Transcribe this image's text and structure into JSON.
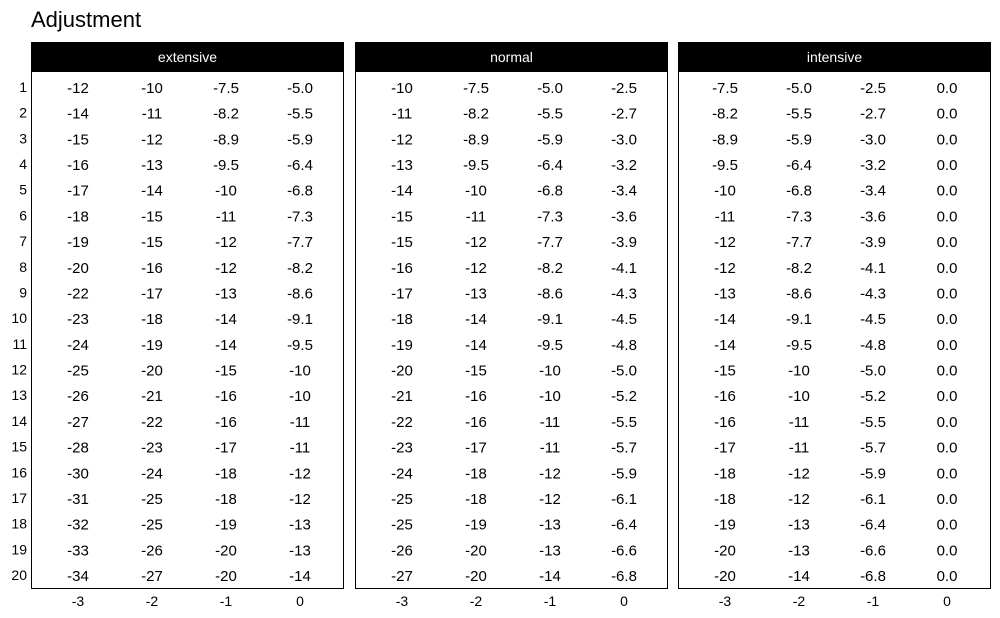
{
  "chart_data": {
    "type": "table",
    "title": "Adjustment",
    "x_tick_labels": [
      "-3",
      "-2",
      "-1",
      "0"
    ],
    "x": [
      -3,
      -2,
      -1,
      0
    ],
    "y_tick_labels": [
      "1",
      "2",
      "3",
      "4",
      "5",
      "6",
      "7",
      "8",
      "9",
      "10",
      "11",
      "12",
      "13",
      "14",
      "15",
      "16",
      "17",
      "18",
      "19",
      "20"
    ],
    "strip_color": "#000000",
    "strip_text_color": "#ffffff",
    "panels": [
      {
        "label": "extensive",
        "rows": [
          [
            "-12",
            "-10",
            "-7.5",
            "-5.0"
          ],
          [
            "-14",
            "-11",
            "-8.2",
            "-5.5"
          ],
          [
            "-15",
            "-12",
            "-8.9",
            "-5.9"
          ],
          [
            "-16",
            "-13",
            "-9.5",
            "-6.4"
          ],
          [
            "-17",
            "-14",
            "-10",
            "-6.8"
          ],
          [
            "-18",
            "-15",
            "-11",
            "-7.3"
          ],
          [
            "-19",
            "-15",
            "-12",
            "-7.7"
          ],
          [
            "-20",
            "-16",
            "-12",
            "-8.2"
          ],
          [
            "-22",
            "-17",
            "-13",
            "-8.6"
          ],
          [
            "-23",
            "-18",
            "-14",
            "-9.1"
          ],
          [
            "-24",
            "-19",
            "-14",
            "-9.5"
          ],
          [
            "-25",
            "-20",
            "-15",
            "-10"
          ],
          [
            "-26",
            "-21",
            "-16",
            "-10"
          ],
          [
            "-27",
            "-22",
            "-16",
            "-11"
          ],
          [
            "-28",
            "-23",
            "-17",
            "-11"
          ],
          [
            "-30",
            "-24",
            "-18",
            "-12"
          ],
          [
            "-31",
            "-25",
            "-18",
            "-12"
          ],
          [
            "-32",
            "-25",
            "-19",
            "-13"
          ],
          [
            "-33",
            "-26",
            "-20",
            "-13"
          ],
          [
            "-34",
            "-27",
            "-20",
            "-14"
          ]
        ]
      },
      {
        "label": "normal",
        "rows": [
          [
            "-10",
            "-7.5",
            "-5.0",
            "-2.5"
          ],
          [
            "-11",
            "-8.2",
            "-5.5",
            "-2.7"
          ],
          [
            "-12",
            "-8.9",
            "-5.9",
            "-3.0"
          ],
          [
            "-13",
            "-9.5",
            "-6.4",
            "-3.2"
          ],
          [
            "-14",
            "-10",
            "-6.8",
            "-3.4"
          ],
          [
            "-15",
            "-11",
            "-7.3",
            "-3.6"
          ],
          [
            "-15",
            "-12",
            "-7.7",
            "-3.9"
          ],
          [
            "-16",
            "-12",
            "-8.2",
            "-4.1"
          ],
          [
            "-17",
            "-13",
            "-8.6",
            "-4.3"
          ],
          [
            "-18",
            "-14",
            "-9.1",
            "-4.5"
          ],
          [
            "-19",
            "-14",
            "-9.5",
            "-4.8"
          ],
          [
            "-20",
            "-15",
            "-10",
            "-5.0"
          ],
          [
            "-21",
            "-16",
            "-10",
            "-5.2"
          ],
          [
            "-22",
            "-16",
            "-11",
            "-5.5"
          ],
          [
            "-23",
            "-17",
            "-11",
            "-5.7"
          ],
          [
            "-24",
            "-18",
            "-12",
            "-5.9"
          ],
          [
            "-25",
            "-18",
            "-12",
            "-6.1"
          ],
          [
            "-25",
            "-19",
            "-13",
            "-6.4"
          ],
          [
            "-26",
            "-20",
            "-13",
            "-6.6"
          ],
          [
            "-27",
            "-20",
            "-14",
            "-6.8"
          ]
        ]
      },
      {
        "label": "intensive",
        "rows": [
          [
            "-7.5",
            "-5.0",
            "-2.5",
            "0.0"
          ],
          [
            "-8.2",
            "-5.5",
            "-2.7",
            "0.0"
          ],
          [
            "-8.9",
            "-5.9",
            "-3.0",
            "0.0"
          ],
          [
            "-9.5",
            "-6.4",
            "-3.2",
            "0.0"
          ],
          [
            "-10",
            "-6.8",
            "-3.4",
            "0.0"
          ],
          [
            "-11",
            "-7.3",
            "-3.6",
            "0.0"
          ],
          [
            "-12",
            "-7.7",
            "-3.9",
            "0.0"
          ],
          [
            "-12",
            "-8.2",
            "-4.1",
            "0.0"
          ],
          [
            "-13",
            "-8.6",
            "-4.3",
            "0.0"
          ],
          [
            "-14",
            "-9.1",
            "-4.5",
            "0.0"
          ],
          [
            "-14",
            "-9.5",
            "-4.8",
            "0.0"
          ],
          [
            "-15",
            "-10",
            "-5.0",
            "0.0"
          ],
          [
            "-16",
            "-10",
            "-5.2",
            "0.0"
          ],
          [
            "-16",
            "-11",
            "-5.5",
            "0.0"
          ],
          [
            "-17",
            "-11",
            "-5.7",
            "0.0"
          ],
          [
            "-18",
            "-12",
            "-5.9",
            "0.0"
          ],
          [
            "-18",
            "-12",
            "-6.1",
            "0.0"
          ],
          [
            "-19",
            "-13",
            "-6.4",
            "0.0"
          ],
          [
            "-20",
            "-13",
            "-6.6",
            "0.0"
          ],
          [
            "-20",
            "-14",
            "-6.8",
            "0.0"
          ]
        ]
      }
    ]
  }
}
